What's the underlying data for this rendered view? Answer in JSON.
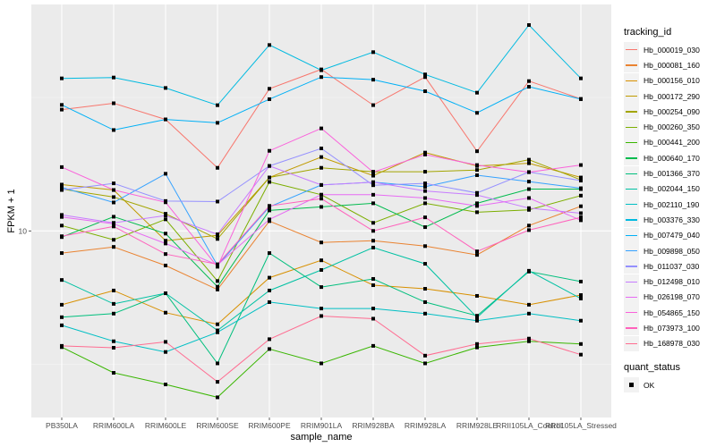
{
  "chart_data": {
    "type": "line",
    "title": "",
    "xlabel": "sample_name",
    "ylabel": "FPKM + 1",
    "y_scale": "log10",
    "y_ticks": [
      10
    ],
    "y_tick_labels": [
      "10"
    ],
    "ylim": [
      2.0,
      70.5
    ],
    "grid": true,
    "legend_position": "right",
    "categories": [
      "PB350LA",
      "RRIM600LA",
      "RRIM600LE",
      "RRIM600SE",
      "RRIM600PE",
      "RRIM901LA",
      "RRIM928BA",
      "RRIM928LA",
      "RRIM928LE",
      "RRII105LA_Control",
      "RRII105LA_Stressed"
    ],
    "legend_title": "tracking_id",
    "shape_legend_title": "quant_status",
    "shape_legend_items": [
      "OK"
    ],
    "series": [
      {
        "name": "Hb_000019_030",
        "color": "#F8766D",
        "values": [
          28.47,
          30.07,
          26.16,
          17.23,
          34.07,
          40.27,
          29.59,
          37.68,
          19.88,
          36.4,
          31.22
        ]
      },
      {
        "name": "Hb_000081_160",
        "color": "#EA8331",
        "values": [
          8.26,
          8.71,
          7.42,
          6.03,
          10.88,
          9.05,
          9.19,
          8.77,
          8.13,
          10.47,
          12.37
        ]
      },
      {
        "name": "Hb_000156_010",
        "color": "#D89000",
        "values": [
          5.29,
          5.98,
          4.94,
          4.47,
          6.68,
          7.76,
          6.26,
          6.07,
          5.71,
          5.29,
          5.75
        ]
      },
      {
        "name": "Hb_000172_290",
        "color": "#C09B00",
        "values": [
          14.91,
          14.23,
          9.19,
          9.62,
          15.85,
          18.91,
          16.1,
          19.65,
          17.51,
          17.92,
          15.85
        ]
      },
      {
        "name": "Hb_000254_090",
        "color": "#A3A500",
        "values": [
          14.34,
          13.39,
          11.59,
          9.33,
          15.85,
          17.23,
          16.66,
          16.66,
          16.91,
          18.48,
          15.53
        ]
      },
      {
        "name": "Hb_000260_350",
        "color": "#7CAE00",
        "values": [
          10.47,
          9.26,
          11.05,
          6.49,
          15.26,
          13.66,
          10.72,
          12.69,
          11.75,
          11.99,
          13.56
        ]
      },
      {
        "name": "Hb_000441_200",
        "color": "#39B600",
        "values": [
          3.67,
          2.94,
          2.66,
          2.38,
          3.61,
          3.19,
          3.71,
          3.19,
          3.66,
          3.86,
          3.77
        ]
      },
      {
        "name": "Hb_000640_170",
        "color": "#00BB4E",
        "values": [
          9.48,
          11.3,
          9.77,
          6.18,
          11.93,
          12.3,
          12.69,
          10.33,
          12.69,
          14.34,
          14.34
        ]
      },
      {
        "name": "Hb_001366_370",
        "color": "#00BF7D",
        "values": [
          4.75,
          4.9,
          5.84,
          3.19,
          8.26,
          6.16,
          6.61,
          5.41,
          4.81,
          7.04,
          6.46
        ]
      },
      {
        "name": "Hb_002044_150",
        "color": "#00C1A3",
        "values": [
          6.55,
          5.33,
          5.84,
          4.24,
          5.98,
          7.14,
          8.66,
          7.53,
          4.74,
          7.09,
          5.58
        ]
      },
      {
        "name": "Hb_002110_190",
        "color": "#00BFC4",
        "values": [
          4.43,
          3.86,
          3.52,
          4.17,
          5.41,
          5.12,
          5.12,
          4.9,
          4.61,
          4.9,
          4.61
        ]
      },
      {
        "name": "Hb_003376_330",
        "color": "#00BAE0",
        "values": [
          37.27,
          37.55,
          34.31,
          29.57,
          49.7,
          39.98,
          46.73,
          38.56,
          32.94,
          59.04,
          37.27
        ]
      },
      {
        "name": "Hb_007479_040",
        "color": "#00B0F6",
        "values": [
          29.65,
          23.87,
          26.16,
          25.4,
          31.15,
          37.69,
          36.85,
          33.36,
          27.68,
          34.67,
          31.15
        ]
      },
      {
        "name": "Hb_009898_050",
        "color": "#35A2FF",
        "values": [
          14.56,
          12.78,
          16.37,
          7.42,
          12.3,
          14.86,
          15.22,
          14.63,
          16.17,
          15.3,
          14.45
        ]
      },
      {
        "name": "Hb_011037_030",
        "color": "#9590FF",
        "values": [
          14.23,
          15.07,
          12.94,
          12.88,
          17.51,
          20.37,
          14.83,
          15.07,
          13.88,
          16.62,
          15.43
        ]
      },
      {
        "name": "Hb_012498_010",
        "color": "#C77CFF",
        "values": [
          11.48,
          10.72,
          11.42,
          9.71,
          17.51,
          14.86,
          15.22,
          14.11,
          13.63,
          12.17,
          11.65
        ]
      },
      {
        "name": "Hb_026198_070",
        "color": "#E76BF3",
        "values": [
          11.28,
          10.63,
          8.97,
          7.46,
          11.04,
          13.66,
          13.66,
          13.28,
          12.4,
          13.28,
          10.96
        ]
      },
      {
        "name": "Hb_054865_150",
        "color": "#FA62DB",
        "values": [
          17.34,
          14.23,
          12.8,
          7.34,
          19.95,
          24.21,
          16.59,
          19.32,
          17.65,
          16.59,
          17.65
        ]
      },
      {
        "name": "Hb_073973_100",
        "color": "#FF62BC",
        "values": [
          9.55,
          10.39,
          8.19,
          7.5,
          12.41,
          13.21,
          10.0,
          11.24,
          8.38,
          10.07,
          11.24
        ]
      },
      {
        "name": "Hb_168978_030",
        "color": "#FF6C91",
        "values": [
          3.71,
          3.65,
          3.84,
          2.72,
          3.93,
          4.8,
          4.69,
          3.41,
          3.77,
          3.95,
          3.44
        ]
      }
    ]
  }
}
